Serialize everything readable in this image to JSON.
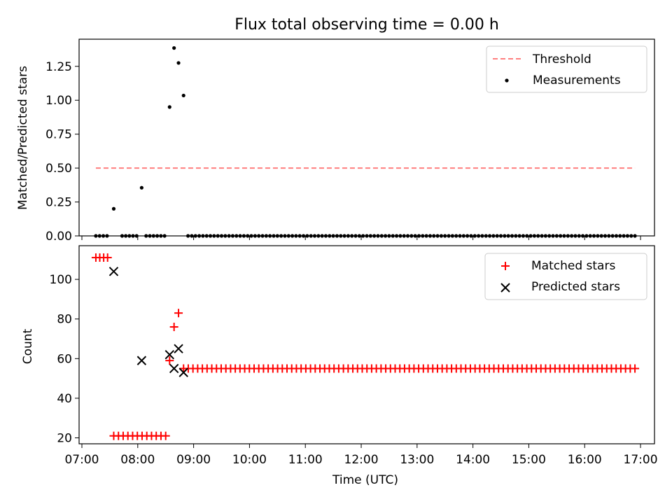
{
  "chart_data": [
    {
      "type": "scatter",
      "title": "Flux total observing time = 0.00 h",
      "xlabel": "",
      "ylabel": "Matched/Predicted stars",
      "xlim": [
        6.95,
        17.25
      ],
      "ylim": [
        0,
        1.45
      ],
      "yticks": [
        0.0,
        0.25,
        0.5,
        0.75,
        1.0,
        1.25
      ],
      "ytick_labels": [
        "0.00",
        "0.25",
        "0.50",
        "0.75",
        "1.00",
        "1.25"
      ],
      "legend_position": "top-right",
      "threshold": {
        "name": "Threshold",
        "value": 0.5,
        "x_range": [
          7.25,
          16.9
        ],
        "color": "#ff7f7f"
      },
      "series": [
        {
          "name": "Measurements",
          "color": "#000000",
          "points": [
            [
              7.57,
              0.2
            ],
            [
              8.07,
              0.355
            ],
            [
              8.57,
              0.95
            ],
            [
              8.65,
              1.385
            ],
            [
              8.73,
              1.275
            ],
            [
              8.82,
              1.035
            ]
          ],
          "zero_runs": [
            {
              "start": 7.25,
              "end": 7.45,
              "count": 4
            },
            {
              "start": 7.72,
              "end": 7.98,
              "count": 5
            },
            {
              "start": 8.15,
              "end": 8.48,
              "count": 6
            },
            {
              "start": 8.9,
              "end": 16.9,
              "count": 121
            }
          ]
        }
      ]
    },
    {
      "type": "scatter",
      "title": "",
      "xlabel": "Time (UTC)",
      "ylabel": "Count",
      "xlim": [
        6.95,
        17.25
      ],
      "ylim": [
        17,
        117
      ],
      "yticks": [
        20,
        40,
        60,
        80,
        100
      ],
      "ytick_labels": [
        "20",
        "40",
        "60",
        "80",
        "100"
      ],
      "xticks": [
        7,
        8,
        9,
        10,
        11,
        12,
        13,
        14,
        15,
        16,
        17
      ],
      "xtick_labels": [
        "07:00",
        "08:00",
        "09:00",
        "10:00",
        "11:00",
        "12:00",
        "13:00",
        "14:00",
        "15:00",
        "16:00",
        "17:00"
      ],
      "legend_position": "top-right",
      "series": [
        {
          "name": "Matched stars",
          "marker": "plus",
          "color": "#ff0000",
          "points": [
            [
              7.25,
              111
            ],
            [
              7.32,
              111
            ],
            [
              7.39,
              111
            ],
            [
              7.46,
              111
            ],
            [
              8.57,
              59
            ],
            [
              8.65,
              76
            ],
            [
              8.73,
              83
            ]
          ],
          "runs": [
            {
              "start": 7.57,
              "end": 8.5,
              "count": 12,
              "value": 21
            },
            {
              "start": 8.82,
              "end": 16.9,
              "count": 97,
              "value": 55
            }
          ]
        },
        {
          "name": "Predicted stars",
          "marker": "x",
          "color": "#000000",
          "points": [
            [
              7.57,
              104
            ],
            [
              8.07,
              59
            ],
            [
              8.57,
              62
            ],
            [
              8.65,
              55
            ],
            [
              8.73,
              65
            ],
            [
              8.82,
              53
            ]
          ]
        }
      ]
    }
  ]
}
